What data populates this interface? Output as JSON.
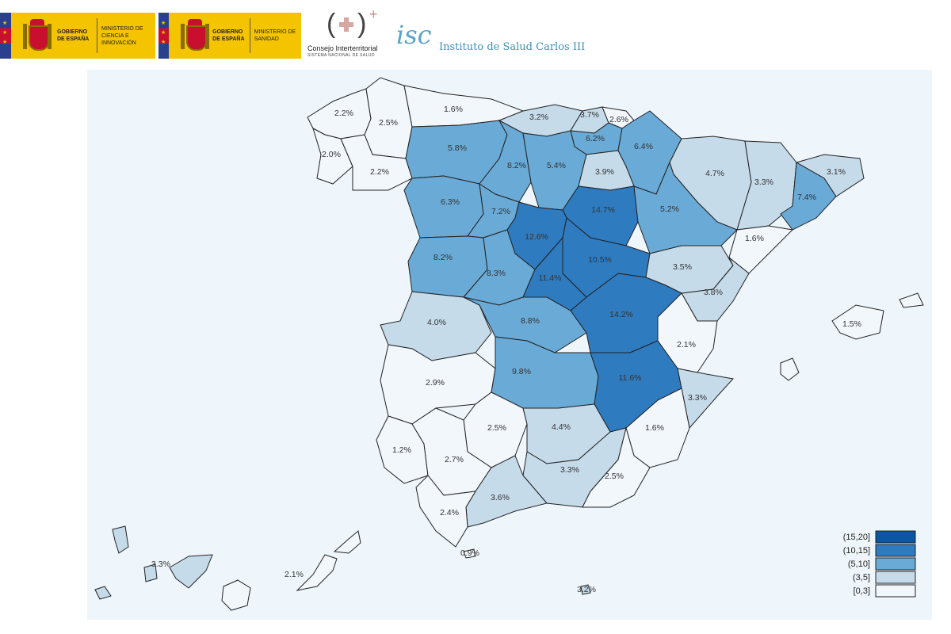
{
  "header": {
    "logo1": {
      "gov_text": "Gobierno de España",
      "ministry_text": "Ministerio de Ciencia e Innovación"
    },
    "logo2": {
      "gov_text": "Gobierno de España",
      "ministry_text": "Ministerio de Sanidad"
    },
    "cisns": {
      "name": "Consejo Interterritorial",
      "subtitle": "SISTEMA NACIONAL DE SALUD"
    },
    "isciii": {
      "mark": "isc",
      "name": "Instituto de Salud Carlos III"
    }
  },
  "colors": {
    "c0": "#f2f7fc",
    "c3": "#c6dbea",
    "c5": "#6aaad6",
    "c10": "#2f7bc0",
    "c15": "#0b56a2",
    "background": "#eef6fb"
  },
  "legend": [
    {
      "label": "(15,20]",
      "color": "#0b56a2"
    },
    {
      "label": "(10,15]",
      "color": "#2f7bc0"
    },
    {
      "label": "(5,10]",
      "color": "#6aaad6"
    },
    {
      "label": "(3,5]",
      "color": "#c6dbea"
    },
    {
      "label": "[0,3]",
      "color": "#f2f7fc"
    }
  ],
  "provinces": [
    {
      "value": "2.2%",
      "class": "c0"
    },
    {
      "value": "2.5%",
      "class": "c0"
    },
    {
      "value": "2.0%",
      "class": "c0"
    },
    {
      "value": "2.2%",
      "class": "c0"
    },
    {
      "value": "1.6%",
      "class": "c0"
    },
    {
      "value": "3.2%",
      "class": "c3"
    },
    {
      "value": "3.7%",
      "class": "c3"
    },
    {
      "value": "2.6%",
      "class": "c0"
    },
    {
      "value": "6.2%",
      "class": "c5"
    },
    {
      "value": "6.4%",
      "class": "c5"
    },
    {
      "value": "5.8%",
      "class": "c5"
    },
    {
      "value": "8.2%",
      "class": "c5"
    },
    {
      "value": "5.4%",
      "class": "c5"
    },
    {
      "value": "3.9%",
      "class": "c3"
    },
    {
      "value": "4.7%",
      "class": "c3"
    },
    {
      "value": "3.3%",
      "class": "c3"
    },
    {
      "value": "3.1%",
      "class": "c3"
    },
    {
      "value": "7.4%",
      "class": "c5"
    },
    {
      "value": "6.3%",
      "class": "c5"
    },
    {
      "value": "7.2%",
      "class": "c5"
    },
    {
      "value": "14.7%",
      "class": "c10"
    },
    {
      "value": "5.2%",
      "class": "c5"
    },
    {
      "value": "1.6%",
      "class": "c0"
    },
    {
      "value": "12.6%",
      "class": "c10"
    },
    {
      "value": "8.2%",
      "class": "c5"
    },
    {
      "value": "8.3%",
      "class": "c5"
    },
    {
      "value": "10.5%",
      "class": "c10"
    },
    {
      "value": "11.4%",
      "class": "c10"
    },
    {
      "value": "3.5%",
      "class": "c3"
    },
    {
      "value": "3.8%",
      "class": "c3"
    },
    {
      "value": "4.0%",
      "class": "c3"
    },
    {
      "value": "8.8%",
      "class": "c5"
    },
    {
      "value": "14.2%",
      "class": "c10"
    },
    {
      "value": "1.5%",
      "class": "c0"
    },
    {
      "value": "2.1%",
      "class": "c0"
    },
    {
      "value": "2.9%",
      "class": "c0"
    },
    {
      "value": "9.8%",
      "class": "c5"
    },
    {
      "value": "11.6%",
      "class": "c10"
    },
    {
      "value": "3.3%",
      "class": "c3"
    },
    {
      "value": "2.5%",
      "class": "c0"
    },
    {
      "value": "4.4%",
      "class": "c3"
    },
    {
      "value": "1.6%",
      "class": "c0"
    },
    {
      "value": "1.2%",
      "class": "c0"
    },
    {
      "value": "2.7%",
      "class": "c0"
    },
    {
      "value": "3.3%",
      "class": "c3"
    },
    {
      "value": "2.5%",
      "class": "c0"
    },
    {
      "value": "3.6%",
      "class": "c3"
    },
    {
      "value": "2.4%",
      "class": "c0"
    },
    {
      "value": "0.9%",
      "class": "c0"
    },
    {
      "value": "3.3%",
      "class": "c3"
    },
    {
      "value": "2.1%",
      "class": "c0"
    },
    {
      "value": "3.2%",
      "class": "c3"
    }
  ]
}
